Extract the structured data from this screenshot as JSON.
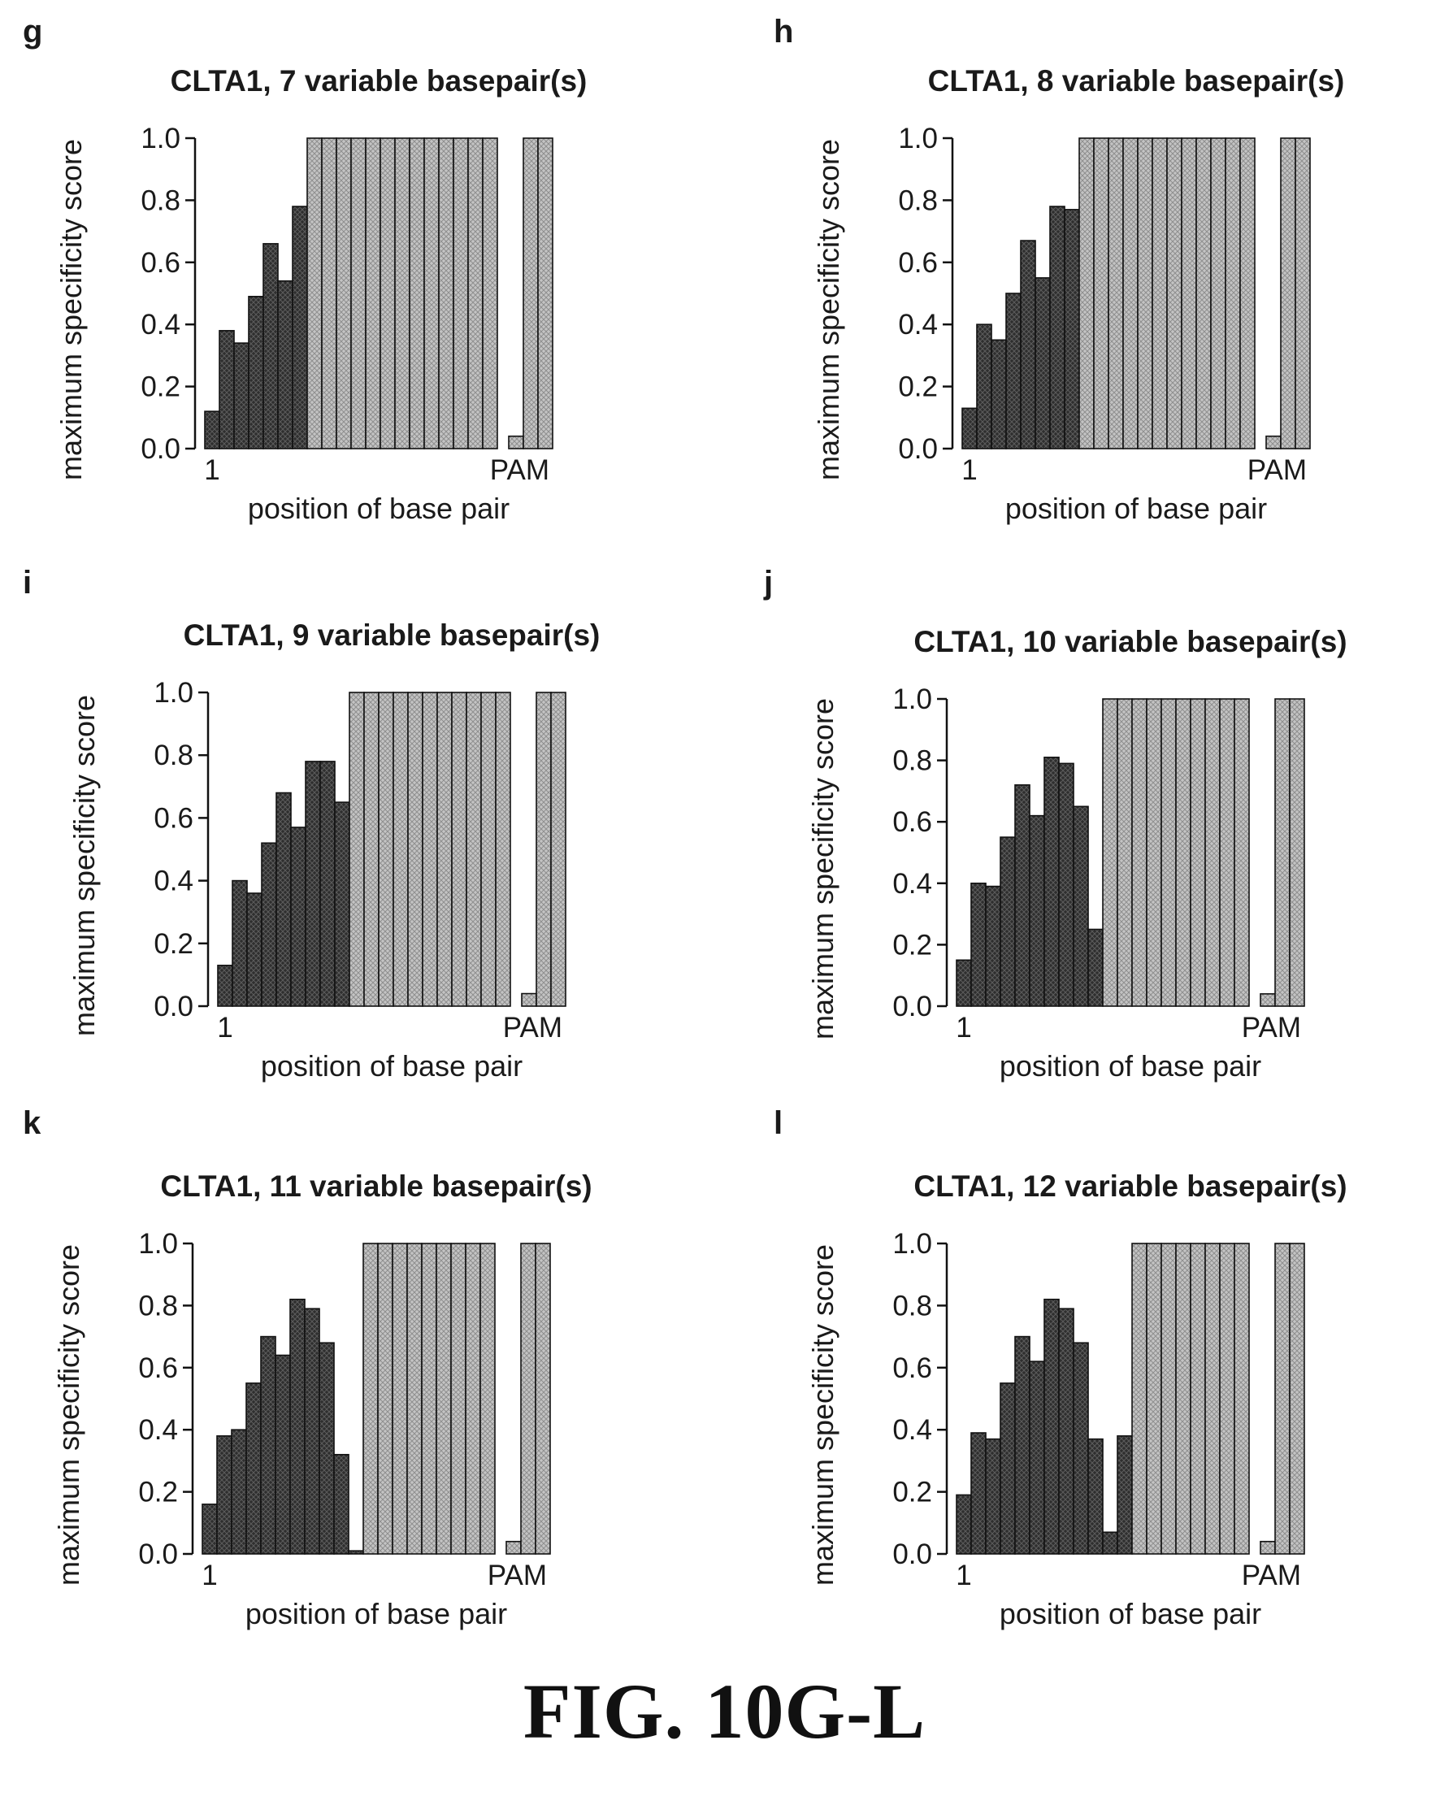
{
  "figure": {
    "caption": "FIG. 10G-L"
  },
  "colors": {
    "dark_bar": "#3a3a3a",
    "light_bar": "#b8b8b8",
    "bar_stroke": "#111111",
    "axis": "#111111"
  },
  "chart_data": [
    {
      "panel": "g",
      "type": "bar",
      "title": "CLTA1, 7 variable basepair(s)",
      "xlabel": "position of base pair",
      "ylabel": "maximum specificity score",
      "x_ticks": [
        "1",
        "PAM"
      ],
      "y_ticks": [
        "0.0",
        "0.2",
        "0.4",
        "0.6",
        "0.8",
        "1.0"
      ],
      "ylim": [
        0,
        1
      ],
      "values": [
        0.12,
        0.38,
        0.34,
        0.49,
        0.66,
        0.54,
        0.78,
        1.0,
        1.0,
        1.0,
        1.0,
        1.0,
        1.0,
        1.0,
        1.0,
        1.0,
        1.0,
        1.0,
        1.0,
        1.0,
        0.04,
        1.0,
        1.0
      ],
      "variable": [
        true,
        true,
        true,
        true,
        true,
        true,
        true,
        false,
        false,
        false,
        false,
        false,
        false,
        false,
        false,
        false,
        false,
        false,
        false,
        false,
        false,
        false,
        false
      ]
    },
    {
      "panel": "h",
      "type": "bar",
      "title": "CLTA1, 8 variable basepair(s)",
      "xlabel": "position of base pair",
      "ylabel": "maximum specificity score",
      "x_ticks": [
        "1",
        "PAM"
      ],
      "y_ticks": [
        "0.0",
        "0.2",
        "0.4",
        "0.6",
        "0.8",
        "1.0"
      ],
      "ylim": [
        0,
        1
      ],
      "values": [
        0.13,
        0.4,
        0.35,
        0.5,
        0.67,
        0.55,
        0.78,
        0.77,
        1.0,
        1.0,
        1.0,
        1.0,
        1.0,
        1.0,
        1.0,
        1.0,
        1.0,
        1.0,
        1.0,
        1.0,
        0.04,
        1.0,
        1.0
      ],
      "variable": [
        true,
        true,
        true,
        true,
        true,
        true,
        true,
        true,
        false,
        false,
        false,
        false,
        false,
        false,
        false,
        false,
        false,
        false,
        false,
        false,
        false,
        false,
        false
      ]
    },
    {
      "panel": "i",
      "type": "bar",
      "title": "CLTA1, 9 variable basepair(s)",
      "xlabel": "position of base pair",
      "ylabel": "maximum specificity score",
      "x_ticks": [
        "1",
        "PAM"
      ],
      "y_ticks": [
        "0.0",
        "0.2",
        "0.4",
        "0.6",
        "0.8",
        "1.0"
      ],
      "ylim": [
        0,
        1
      ],
      "values": [
        0.13,
        0.4,
        0.36,
        0.52,
        0.68,
        0.57,
        0.78,
        0.78,
        0.65,
        1.0,
        1.0,
        1.0,
        1.0,
        1.0,
        1.0,
        1.0,
        1.0,
        1.0,
        1.0,
        1.0,
        0.04,
        1.0,
        1.0
      ],
      "variable": [
        true,
        true,
        true,
        true,
        true,
        true,
        true,
        true,
        true,
        false,
        false,
        false,
        false,
        false,
        false,
        false,
        false,
        false,
        false,
        false,
        false,
        false,
        false
      ]
    },
    {
      "panel": "j",
      "type": "bar",
      "title": "CLTA1, 10 variable basepair(s)",
      "xlabel": "position of base pair",
      "ylabel": "maximum specificity score",
      "x_ticks": [
        "1",
        "PAM"
      ],
      "y_ticks": [
        "0.0",
        "0.2",
        "0.4",
        "0.6",
        "0.8",
        "1.0"
      ],
      "ylim": [
        0,
        1
      ],
      "values": [
        0.15,
        0.4,
        0.39,
        0.55,
        0.72,
        0.62,
        0.81,
        0.79,
        0.65,
        0.25,
        1.0,
        1.0,
        1.0,
        1.0,
        1.0,
        1.0,
        1.0,
        1.0,
        1.0,
        1.0,
        0.04,
        1.0,
        1.0
      ],
      "variable": [
        true,
        true,
        true,
        true,
        true,
        true,
        true,
        true,
        true,
        true,
        false,
        false,
        false,
        false,
        false,
        false,
        false,
        false,
        false,
        false,
        false,
        false,
        false
      ]
    },
    {
      "panel": "k",
      "type": "bar",
      "title": "CLTA1, 11 variable basepair(s)",
      "xlabel": "position of base pair",
      "ylabel": "maximum specificity score",
      "x_ticks": [
        "1",
        "PAM"
      ],
      "y_ticks": [
        "0.0",
        "0.2",
        "0.4",
        "0.6",
        "0.8",
        "1.0"
      ],
      "ylim": [
        0,
        1
      ],
      "values": [
        0.16,
        0.38,
        0.4,
        0.55,
        0.7,
        0.64,
        0.82,
        0.79,
        0.68,
        0.32,
        0.01,
        1.0,
        1.0,
        1.0,
        1.0,
        1.0,
        1.0,
        1.0,
        1.0,
        1.0,
        0.04,
        1.0,
        1.0
      ],
      "variable": [
        true,
        true,
        true,
        true,
        true,
        true,
        true,
        true,
        true,
        true,
        true,
        false,
        false,
        false,
        false,
        false,
        false,
        false,
        false,
        false,
        false,
        false,
        false
      ]
    },
    {
      "panel": "l",
      "type": "bar",
      "title": "CLTA1, 12 variable basepair(s)",
      "xlabel": "position of base pair",
      "ylabel": "maximum specificity score",
      "x_ticks": [
        "1",
        "PAM"
      ],
      "y_ticks": [
        "0.0",
        "0.2",
        "0.4",
        "0.6",
        "0.8",
        "1.0"
      ],
      "ylim": [
        0,
        1
      ],
      "values": [
        0.19,
        0.39,
        0.37,
        0.55,
        0.7,
        0.62,
        0.82,
        0.79,
        0.68,
        0.37,
        0.07,
        0.38,
        1.0,
        1.0,
        1.0,
        1.0,
        1.0,
        1.0,
        1.0,
        1.0,
        0.04,
        1.0,
        1.0
      ],
      "variable": [
        true,
        true,
        true,
        true,
        true,
        true,
        true,
        true,
        true,
        true,
        true,
        true,
        false,
        false,
        false,
        false,
        false,
        false,
        false,
        false,
        false,
        false,
        false
      ]
    }
  ]
}
